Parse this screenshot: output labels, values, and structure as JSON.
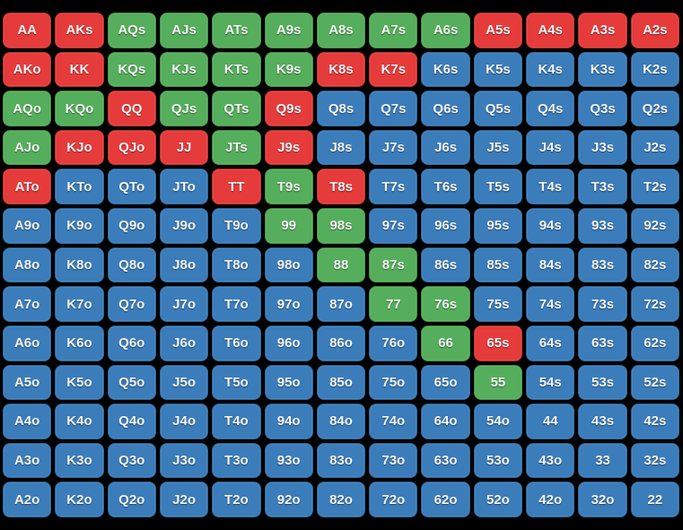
{
  "chart_data": {
    "type": "heatmap",
    "description": "13x13 poker starting-hand range matrix; each cell is a hand combo colored by range category",
    "grid_size": {
      "rows": 13,
      "cols": 13
    },
    "color_map": {
      "r": "#e63b3b",
      "g": "#55ae5b",
      "b": "#3b7cba"
    },
    "text_color": "#f4f4f4",
    "background_color": "#000000",
    "rows": [
      [
        [
          "AA",
          "r"
        ],
        [
          "AKs",
          "r"
        ],
        [
          "AQs",
          "g"
        ],
        [
          "AJs",
          "g"
        ],
        [
          "ATs",
          "g"
        ],
        [
          "A9s",
          "g"
        ],
        [
          "A8s",
          "g"
        ],
        [
          "A7s",
          "g"
        ],
        [
          "A6s",
          "g"
        ],
        [
          "A5s",
          "r"
        ],
        [
          "A4s",
          "r"
        ],
        [
          "A3s",
          "r"
        ],
        [
          "A2s",
          "r"
        ]
      ],
      [
        [
          "AKo",
          "r"
        ],
        [
          "KK",
          "r"
        ],
        [
          "KQs",
          "g"
        ],
        [
          "KJs",
          "g"
        ],
        [
          "KTs",
          "g"
        ],
        [
          "K9s",
          "g"
        ],
        [
          "K8s",
          "r"
        ],
        [
          "K7s",
          "r"
        ],
        [
          "K6s",
          "b"
        ],
        [
          "K5s",
          "b"
        ],
        [
          "K4s",
          "b"
        ],
        [
          "K3s",
          "b"
        ],
        [
          "K2s",
          "b"
        ]
      ],
      [
        [
          "AQo",
          "g"
        ],
        [
          "KQo",
          "g"
        ],
        [
          "QQ",
          "r"
        ],
        [
          "QJs",
          "g"
        ],
        [
          "QTs",
          "g"
        ],
        [
          "Q9s",
          "r"
        ],
        [
          "Q8s",
          "b"
        ],
        [
          "Q7s",
          "b"
        ],
        [
          "Q6s",
          "b"
        ],
        [
          "Q5s",
          "b"
        ],
        [
          "Q4s",
          "b"
        ],
        [
          "Q3s",
          "b"
        ],
        [
          "Q2s",
          "b"
        ]
      ],
      [
        [
          "AJo",
          "g"
        ],
        [
          "KJo",
          "r"
        ],
        [
          "QJo",
          "r"
        ],
        [
          "JJ",
          "r"
        ],
        [
          "JTs",
          "g"
        ],
        [
          "J9s",
          "r"
        ],
        [
          "J8s",
          "b"
        ],
        [
          "J7s",
          "b"
        ],
        [
          "J6s",
          "b"
        ],
        [
          "J5s",
          "b"
        ],
        [
          "J4s",
          "b"
        ],
        [
          "J3s",
          "b"
        ],
        [
          "J2s",
          "b"
        ]
      ],
      [
        [
          "ATo",
          "r"
        ],
        [
          "KTo",
          "b"
        ],
        [
          "QTo",
          "b"
        ],
        [
          "JTo",
          "b"
        ],
        [
          "TT",
          "r"
        ],
        [
          "T9s",
          "g"
        ],
        [
          "T8s",
          "r"
        ],
        [
          "T7s",
          "b"
        ],
        [
          "T6s",
          "b"
        ],
        [
          "T5s",
          "b"
        ],
        [
          "T4s",
          "b"
        ],
        [
          "T3s",
          "b"
        ],
        [
          "T2s",
          "b"
        ]
      ],
      [
        [
          "A9o",
          "b"
        ],
        [
          "K9o",
          "b"
        ],
        [
          "Q9o",
          "b"
        ],
        [
          "J9o",
          "b"
        ],
        [
          "T9o",
          "b"
        ],
        [
          "99",
          "g"
        ],
        [
          "98s",
          "g"
        ],
        [
          "97s",
          "b"
        ],
        [
          "96s",
          "b"
        ],
        [
          "95s",
          "b"
        ],
        [
          "94s",
          "b"
        ],
        [
          "93s",
          "b"
        ],
        [
          "92s",
          "b"
        ]
      ],
      [
        [
          "A8o",
          "b"
        ],
        [
          "K8o",
          "b"
        ],
        [
          "Q8o",
          "b"
        ],
        [
          "J8o",
          "b"
        ],
        [
          "T8o",
          "b"
        ],
        [
          "98o",
          "b"
        ],
        [
          "88",
          "g"
        ],
        [
          "87s",
          "g"
        ],
        [
          "86s",
          "b"
        ],
        [
          "85s",
          "b"
        ],
        [
          "84s",
          "b"
        ],
        [
          "83s",
          "b"
        ],
        [
          "82s",
          "b"
        ]
      ],
      [
        [
          "A7o",
          "b"
        ],
        [
          "K7o",
          "b"
        ],
        [
          "Q7o",
          "b"
        ],
        [
          "J7o",
          "b"
        ],
        [
          "T7o",
          "b"
        ],
        [
          "97o",
          "b"
        ],
        [
          "87o",
          "b"
        ],
        [
          "77",
          "g"
        ],
        [
          "76s",
          "g"
        ],
        [
          "75s",
          "b"
        ],
        [
          "74s",
          "b"
        ],
        [
          "73s",
          "b"
        ],
        [
          "72s",
          "b"
        ]
      ],
      [
        [
          "A6o",
          "b"
        ],
        [
          "K6o",
          "b"
        ],
        [
          "Q6o",
          "b"
        ],
        [
          "J6o",
          "b"
        ],
        [
          "T6o",
          "b"
        ],
        [
          "96o",
          "b"
        ],
        [
          "86o",
          "b"
        ],
        [
          "76o",
          "b"
        ],
        [
          "66",
          "g"
        ],
        [
          "65s",
          "r"
        ],
        [
          "64s",
          "b"
        ],
        [
          "63s",
          "b"
        ],
        [
          "62s",
          "b"
        ]
      ],
      [
        [
          "A5o",
          "b"
        ],
        [
          "K5o",
          "b"
        ],
        [
          "Q5o",
          "b"
        ],
        [
          "J5o",
          "b"
        ],
        [
          "T5o",
          "b"
        ],
        [
          "95o",
          "b"
        ],
        [
          "85o",
          "b"
        ],
        [
          "75o",
          "b"
        ],
        [
          "65o",
          "b"
        ],
        [
          "55",
          "g"
        ],
        [
          "54s",
          "b"
        ],
        [
          "53s",
          "b"
        ],
        [
          "52s",
          "b"
        ]
      ],
      [
        [
          "A4o",
          "b"
        ],
        [
          "K4o",
          "b"
        ],
        [
          "Q4o",
          "b"
        ],
        [
          "J4o",
          "b"
        ],
        [
          "T4o",
          "b"
        ],
        [
          "94o",
          "b"
        ],
        [
          "84o",
          "b"
        ],
        [
          "74o",
          "b"
        ],
        [
          "64o",
          "b"
        ],
        [
          "54o",
          "b"
        ],
        [
          "44",
          "b"
        ],
        [
          "43s",
          "b"
        ],
        [
          "42s",
          "b"
        ]
      ],
      [
        [
          "A3o",
          "b"
        ],
        [
          "K3o",
          "b"
        ],
        [
          "Q3o",
          "b"
        ],
        [
          "J3o",
          "b"
        ],
        [
          "T3o",
          "b"
        ],
        [
          "93o",
          "b"
        ],
        [
          "83o",
          "b"
        ],
        [
          "73o",
          "b"
        ],
        [
          "63o",
          "b"
        ],
        [
          "53o",
          "b"
        ],
        [
          "43o",
          "b"
        ],
        [
          "33",
          "b"
        ],
        [
          "32s",
          "b"
        ]
      ],
      [
        [
          "A2o",
          "b"
        ],
        [
          "K2o",
          "b"
        ],
        [
          "Q2o",
          "b"
        ],
        [
          "J2o",
          "b"
        ],
        [
          "T2o",
          "b"
        ],
        [
          "92o",
          "b"
        ],
        [
          "82o",
          "b"
        ],
        [
          "72o",
          "b"
        ],
        [
          "62o",
          "b"
        ],
        [
          "52o",
          "b"
        ],
        [
          "42o",
          "b"
        ],
        [
          "32o",
          "b"
        ],
        [
          "22",
          "b"
        ]
      ]
    ]
  }
}
